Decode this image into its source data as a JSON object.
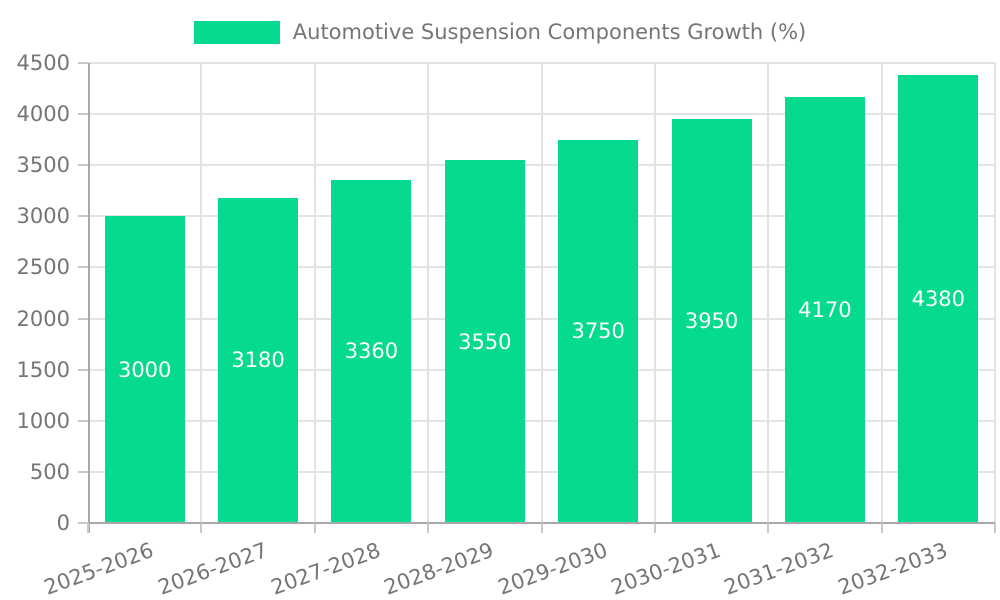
{
  "chart_data": {
    "type": "bar",
    "title": "Automotive Suspension Components Growth (%)",
    "categories": [
      "2025-2026",
      "2026-2027",
      "2027-2028",
      "2028-2029",
      "2029-2030",
      "2030-2031",
      "2031-2032",
      "2032-2033"
    ],
    "values": [
      3000,
      3180,
      3360,
      3550,
      3750,
      3950,
      4170,
      4380
    ],
    "value_labels": [
      "3000",
      "3180",
      "3360",
      "3550",
      "3750",
      "3950",
      "4170",
      "4380"
    ],
    "xlabel": "",
    "ylabel": "",
    "ylim": [
      0,
      4500
    ],
    "ytick_step": 500,
    "ytick_labels": [
      "0",
      "500",
      "1000",
      "1500",
      "2000",
      "2500",
      "3000",
      "3500",
      "4000",
      "4500"
    ],
    "grid": true,
    "legend_position": "top-center",
    "value_label_position": "center-of-bar",
    "xtick_rotation_deg": -20,
    "colors": {
      "bar": "#05da8f",
      "axis_text": "#757575",
      "value_label_text": "#ffffff",
      "gridline": "#e3e3e3",
      "axis_line": "#a8a8a8",
      "tick": "#c8c8c8",
      "background": "#ffffff"
    }
  }
}
